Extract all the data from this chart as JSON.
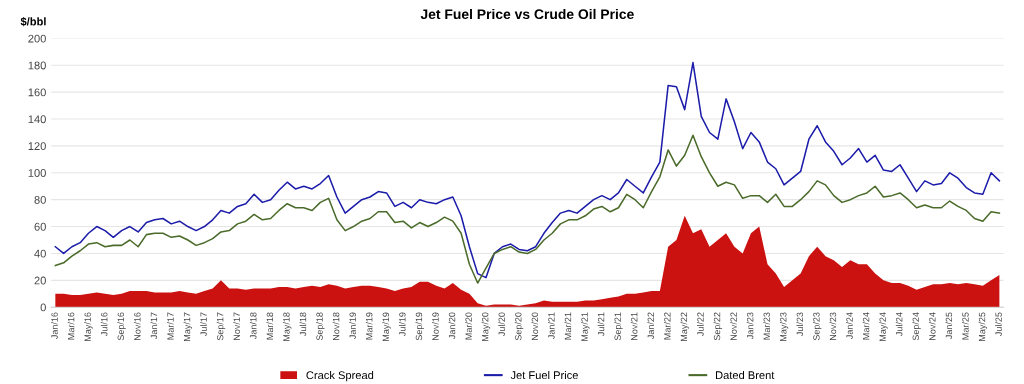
{
  "chart_data": {
    "type": "line",
    "title": "Jet Fuel Price vs Crude Oil Price",
    "ylabel": "$/bbl",
    "categories": [
      "Jan/16",
      null,
      "Mar/16",
      null,
      "May/16",
      null,
      "Jul/16",
      null,
      "Sep/16",
      null,
      "Nov/16",
      null,
      "Jan/17",
      null,
      "Mar/17",
      null,
      "May/17",
      null,
      "Jul/17",
      null,
      "Sep/17",
      null,
      "Nov/17",
      null,
      "Jan/18",
      null,
      "Mar/18",
      null,
      "May/18",
      null,
      "Jul/18",
      null,
      "Sep/18",
      null,
      "Nov/18",
      null,
      "Jan/19",
      null,
      "Mar/19",
      null,
      "May/19",
      null,
      "Jul/19",
      null,
      "Sep/19",
      null,
      "Nov/19",
      null,
      "Jan/20",
      null,
      "Mar/20",
      null,
      "May/20",
      null,
      "Jul/20",
      null,
      "Sep/20",
      null,
      "Nov/20",
      null,
      "Jan/21",
      null,
      "Mar/21",
      null,
      "May/21",
      null,
      "Jul/21",
      null,
      "Sep/21",
      null,
      "Nov/21",
      null,
      "Jan/22",
      null,
      "Mar/22",
      null,
      "May/22",
      null,
      "Jul/22",
      null,
      "Sep/22",
      null,
      "Nov/22",
      null,
      "Jan/23",
      null,
      "Mar/23",
      null,
      "May/23",
      null,
      "Jul/23",
      null,
      "Sep/23",
      null,
      "Nov/23",
      null,
      "Jan/24",
      null,
      "Mar/24",
      null,
      "May/24",
      null,
      "Jul/24",
      null,
      "Sep/24",
      null,
      "Nov/24",
      null,
      "Jan/25",
      null,
      "Mar/25",
      null,
      "May/25",
      null,
      "Jul/25"
    ],
    "series": [
      {
        "name": "Crack Spread",
        "type": "area",
        "color": "#cc1111",
        "values": [
          10,
          10,
          9,
          9,
          10,
          11,
          10,
          9,
          10,
          12,
          12,
          12,
          11,
          11,
          11,
          12,
          11,
          10,
          12,
          14,
          20,
          14,
          14,
          13,
          14,
          14,
          14,
          15,
          15,
          14,
          15,
          16,
          15,
          17,
          16,
          14,
          15,
          16,
          16,
          15,
          14,
          12,
          14,
          15,
          19,
          19,
          16,
          14,
          18,
          13,
          10,
          3,
          1,
          2,
          2,
          2,
          1,
          2,
          3,
          5,
          4,
          4,
          4,
          4,
          5,
          5,
          6,
          7,
          8,
          10,
          10,
          11,
          12,
          12,
          45,
          50,
          68,
          55,
          58,
          45,
          50,
          55,
          45,
          40,
          55,
          60,
          32,
          25,
          15,
          20,
          25,
          38,
          45,
          38,
          35,
          30,
          35,
          32,
          32,
          25,
          20,
          18,
          18,
          16,
          13,
          15,
          17,
          17,
          18,
          17,
          18,
          17,
          16,
          20,
          24
        ]
      },
      {
        "name": "Jet Fuel Price",
        "color": "#1c1caa",
        "values": [
          45,
          40,
          45,
          48,
          55,
          60,
          57,
          52,
          57,
          60,
          56,
          63,
          65,
          66,
          62,
          64,
          60,
          57,
          60,
          65,
          72,
          70,
          75,
          77,
          84,
          78,
          80,
          87,
          93,
          88,
          90,
          88,
          92,
          98,
          82,
          70,
          75,
          80,
          82,
          86,
          85,
          75,
          78,
          74,
          80,
          78,
          77,
          80,
          82,
          68,
          45,
          25,
          22,
          40,
          45,
          47,
          43,
          42,
          45,
          55,
          63,
          70,
          72,
          70,
          75,
          80,
          83,
          80,
          85,
          95,
          90,
          85,
          97,
          108,
          165,
          164,
          147,
          182,
          142,
          130,
          125,
          155,
          138,
          118,
          130,
          123,
          108,
          103,
          91,
          96,
          101,
          125,
          135,
          123,
          116,
          106,
          111,
          118,
          108,
          113,
          102,
          101,
          106,
          96,
          86,
          94,
          91,
          92,
          100,
          96,
          89,
          85,
          84,
          100,
          94
        ]
      },
      {
        "name": "Dated Brent",
        "color": "#4a6b2a",
        "values": [
          31,
          33,
          38,
          42,
          47,
          48,
          45,
          46,
          46,
          50,
          45,
          54,
          55,
          55,
          52,
          53,
          50,
          46,
          48,
          51,
          56,
          57,
          62,
          64,
          69,
          65,
          66,
          72,
          77,
          74,
          74,
          72,
          78,
          81,
          65,
          57,
          60,
          64,
          66,
          71,
          71,
          63,
          64,
          59,
          63,
          60,
          63,
          67,
          64,
          55,
          32,
          18,
          29,
          40,
          43,
          45,
          41,
          40,
          43,
          50,
          55,
          62,
          65,
          65,
          68,
          73,
          75,
          71,
          74,
          84,
          80,
          74,
          86,
          97,
          117,
          105,
          113,
          128,
          112,
          100,
          90,
          93,
          91,
          81,
          83,
          83,
          78,
          84,
          75,
          75,
          80,
          86,
          94,
          91,
          83,
          78,
          80,
          83,
          85,
          90,
          82,
          83,
          85,
          80,
          74,
          76,
          74,
          74,
          79,
          75,
          72,
          66,
          64,
          71,
          70
        ]
      }
    ],
    "ylim": [
      0,
      200
    ],
    "yticks": [
      0,
      20,
      40,
      60,
      80,
      100,
      120,
      140,
      160,
      180,
      200
    ],
    "grid": "y",
    "legend": "bottom"
  }
}
